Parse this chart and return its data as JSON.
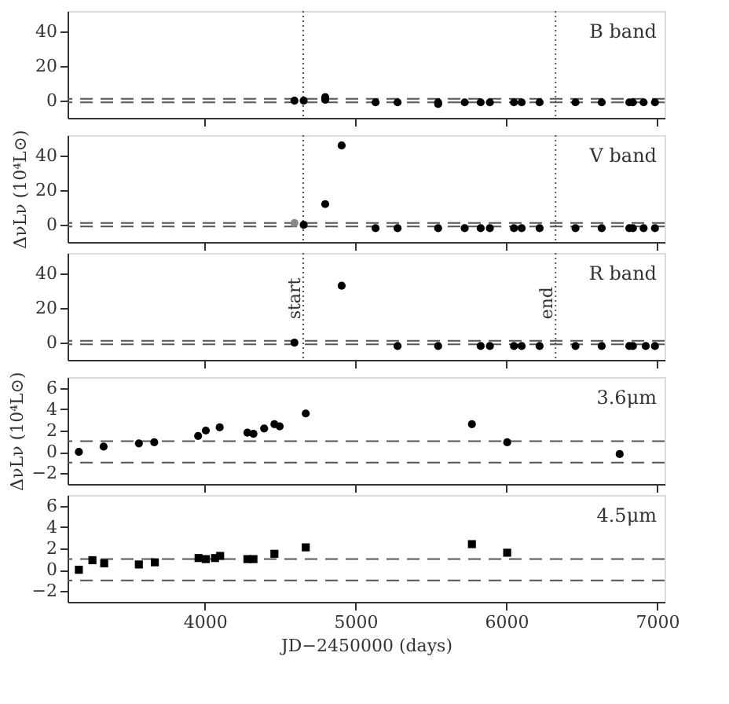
{
  "chart_data": [
    {
      "type": "scatter",
      "annotations": [
        "B band"
      ],
      "xlim": [
        3090,
        7050
      ],
      "ylim": [
        -10,
        52
      ],
      "xticks": [
        4000,
        5000,
        6000,
        7000
      ],
      "yticks": [
        0,
        20,
        40
      ],
      "tick_labels": "y",
      "marker": "circle",
      "series": [
        {
          "color": "#000000",
          "x": [
            4595,
            4656,
            4799,
            4799,
            5133,
            5279,
            5548,
            5548,
            5724,
            5830,
            5891,
            6051,
            6102,
            6221,
            6459,
            6633,
            6816,
            6840,
            6911,
            6986
          ],
          "values": [
            0,
            0,
            2,
            0.5,
            -1,
            -1,
            -1,
            -2,
            -1,
            -1,
            -1,
            -1,
            -1,
            -1,
            -1,
            -1,
            -1,
            -1,
            -1,
            -1
          ]
        }
      ],
      "ref_lines": [
        {
          "axis": "y",
          "value": 1,
          "line_style": "dashed",
          "color": "#555555"
        },
        {
          "axis": "y",
          "value": -1,
          "line_style": "dashed",
          "color": "#555555"
        },
        {
          "axis": "x",
          "value": 4653,
          "line_style": "dotted",
          "color": "#555555"
        },
        {
          "axis": "x",
          "value": 6327,
          "line_style": "dotted",
          "color": "#555555"
        }
      ]
    },
    {
      "type": "scatter",
      "annotations": [
        "V band"
      ],
      "ylabel": "ΔνLν (10⁴L⊙)",
      "xlim": [
        3090,
        7050
      ],
      "ylim": [
        -10,
        52
      ],
      "xticks": [
        4000,
        5000,
        6000,
        7000
      ],
      "yticks": [
        0,
        20,
        40
      ],
      "tick_labels": "y",
      "marker": "circle",
      "series": [
        {
          "color": "#000000",
          "colors": [
            "#888888",
            "#000000",
            "#000000",
            "#000000",
            "#000000",
            "#000000",
            "#000000",
            "#000000",
            "#000000",
            "#000000",
            "#000000",
            "#000000",
            "#000000",
            "#000000",
            "#000000",
            "#000000",
            "#000000",
            "#000000",
            "#000000"
          ],
          "x": [
            4595,
            4656,
            4799,
            4908,
            5133,
            5279,
            5548,
            5724,
            5830,
            5891,
            6051,
            6102,
            6221,
            6459,
            6633,
            6816,
            6840,
            6911,
            6986
          ],
          "values": [
            1,
            0,
            12,
            46,
            -2,
            -2,
            -2,
            -2,
            -2,
            -2,
            -2,
            -2,
            -2,
            -2,
            -2,
            -2,
            -2,
            -2,
            -2
          ]
        }
      ],
      "ref_lines": [
        {
          "axis": "y",
          "value": 1,
          "line_style": "dashed",
          "color": "#555555"
        },
        {
          "axis": "y",
          "value": -1,
          "line_style": "dashed",
          "color": "#555555"
        },
        {
          "axis": "x",
          "value": 4653,
          "line_style": "dotted",
          "color": "#555555"
        },
        {
          "axis": "x",
          "value": 6327,
          "line_style": "dotted",
          "color": "#555555"
        }
      ]
    },
    {
      "type": "scatter",
      "annotations": [
        "R band"
      ],
      "xlim": [
        3090,
        7050
      ],
      "ylim": [
        -10,
        52
      ],
      "xticks": [
        4000,
        5000,
        6000,
        7000
      ],
      "yticks": [
        0,
        20,
        40
      ],
      "tick_labels": "y",
      "marker": "circle",
      "series": [
        {
          "color": "#000000",
          "x": [
            4595,
            4908,
            5279,
            5548,
            5830,
            5891,
            6051,
            6102,
            6221,
            6459,
            6633,
            6816,
            6840,
            6925,
            6986
          ],
          "values": [
            0,
            33,
            -2,
            -2,
            -2,
            -2,
            -2,
            -2,
            -2,
            -2,
            -2,
            -2,
            -2,
            -2,
            -2
          ]
        }
      ],
      "ref_lines": [
        {
          "axis": "y",
          "value": 1,
          "line_style": "dashed",
          "color": "#555555"
        },
        {
          "axis": "y",
          "value": -1,
          "line_style": "dashed",
          "color": "#555555"
        },
        {
          "axis": "x",
          "value": 4653,
          "label": "start",
          "line_style": "dotted",
          "color": "#555555"
        },
        {
          "axis": "x",
          "value": 6327,
          "label": "end",
          "line_style": "dotted",
          "color": "#555555"
        }
      ]
    },
    {
      "type": "scatter",
      "annotations": [
        "3.6μm"
      ],
      "ylabel": "ΔνLν (10⁴L⊙)",
      "xlim": [
        3090,
        7050
      ],
      "ylim": [
        -3,
        7
      ],
      "xticks": [
        4000,
        5000,
        6000,
        7000
      ],
      "yticks": [
        -2,
        0,
        2,
        4,
        6
      ],
      "tick_labels": "y",
      "marker": "circle",
      "series": [
        {
          "color": "#000000",
          "x": [
            3165,
            3329,
            3563,
            3665,
            3956,
            4007,
            4099,
            4283,
            4323,
            4394,
            4462,
            4497,
            4670,
            5772,
            6006,
            6752
          ],
          "values": [
            0,
            0.5,
            0.8,
            0.9,
            1.5,
            2,
            2.3,
            1.8,
            1.7,
            2.2,
            2.6,
            2.4,
            3.6,
            2.6,
            0.9,
            -0.2
          ],
          "errors": [
            0.3,
            0.3,
            0.3,
            0.3,
            0.3,
            0.3,
            0.3,
            0.3,
            0.3,
            0.3,
            0.3,
            0.3,
            0.3,
            0.3,
            0.3,
            0.3
          ]
        }
      ],
      "ref_lines": [
        {
          "axis": "y",
          "value": 1,
          "line_style": "dashed",
          "color": "#555555"
        },
        {
          "axis": "y",
          "value": -1,
          "line_style": "dashed",
          "color": "#555555"
        }
      ]
    },
    {
      "type": "scatter",
      "annotations": [
        "4.5μm"
      ],
      "xlabel": "JD−2450000 (days)",
      "xlim": [
        3090,
        7050
      ],
      "ylim": [
        -3,
        7
      ],
      "xticks": [
        4000,
        5000,
        6000,
        7000
      ],
      "yticks": [
        -2,
        0,
        2,
        4,
        6
      ],
      "marker": "square",
      "series": [
        {
          "color": "#000000",
          "x": [
            3165,
            3255,
            3333,
            3563,
            3669,
            3959,
            4007,
            4068,
            4102,
            4283,
            4323,
            4462,
            4670,
            5772,
            6006
          ],
          "values": [
            0,
            0.9,
            0.6,
            0.5,
            0.7,
            1.1,
            1.0,
            1.1,
            1.3,
            1.0,
            1.0,
            1.5,
            2.1,
            2.4,
            1.6
          ],
          "errors": [
            0.2,
            0.2,
            0.2,
            0.2,
            0.2,
            0.2,
            0.2,
            0.2,
            0.2,
            0.2,
            0.2,
            0.2,
            0.2,
            0.2,
            0.2
          ]
        }
      ],
      "ref_lines": [
        {
          "axis": "y",
          "value": 1,
          "line_style": "dashed",
          "color": "#555555"
        },
        {
          "axis": "y",
          "value": -1,
          "line_style": "dashed",
          "color": "#555555"
        }
      ]
    }
  ]
}
